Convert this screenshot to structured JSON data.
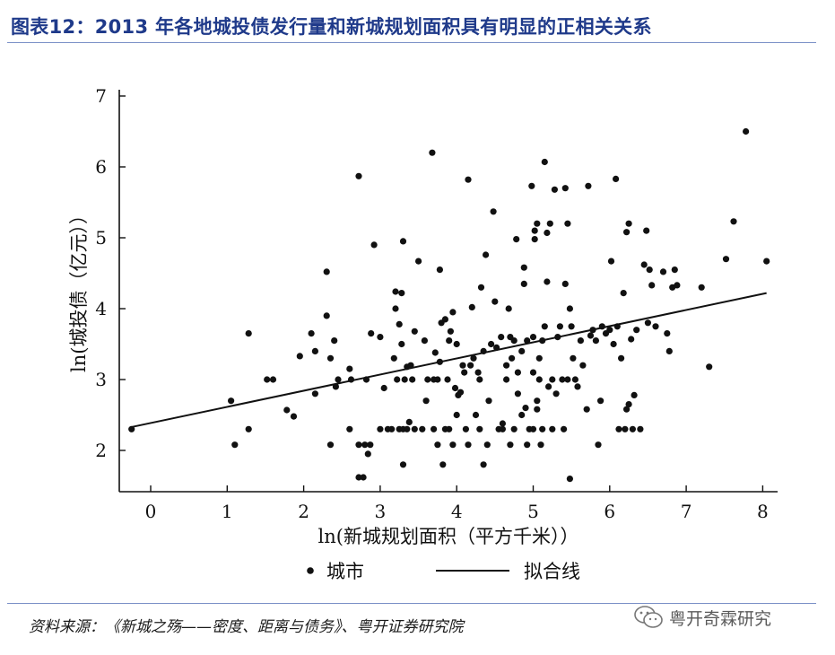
{
  "title": "图表12：2013 年各地城投债发行量和新城规划面积具有明显的正相关关系",
  "source": "资料来源：《新城之殇——密度、距离与债务》、粤开证券研究院",
  "watermark": {
    "text": "粤开奇霖研究",
    "icon": "wechat-icon"
  },
  "chart_data": {
    "type": "scatter",
    "xlabel": "ln(新城规划面积（平方千米））",
    "ylabel": "ln(城投债（亿元））",
    "xlim": [
      -0.4,
      8.2
    ],
    "ylim": [
      1.5,
      7.1
    ],
    "xticks": [
      0,
      1,
      2,
      3,
      4,
      5,
      6,
      7,
      8
    ],
    "yticks": [
      2,
      3,
      4,
      5,
      6,
      7
    ],
    "grid": false,
    "legend": {
      "placement": "bottom",
      "entries": [
        {
          "label": "城市",
          "marker": "dot"
        },
        {
          "label": "拟合线",
          "marker": "line"
        }
      ]
    },
    "series": [
      {
        "name": "城市",
        "points": [
          [
            -0.25,
            2.3
          ],
          [
            1.05,
            2.7
          ],
          [
            1.1,
            2.08
          ],
          [
            1.28,
            2.3
          ],
          [
            1.28,
            3.65
          ],
          [
            1.52,
            3.0
          ],
          [
            1.6,
            3.0
          ],
          [
            1.78,
            2.57
          ],
          [
            1.87,
            2.48
          ],
          [
            1.95,
            3.33
          ],
          [
            2.1,
            3.65
          ],
          [
            2.15,
            3.4
          ],
          [
            2.15,
            2.8
          ],
          [
            2.3,
            3.9
          ],
          [
            2.3,
            4.52
          ],
          [
            2.35,
            3.3
          ],
          [
            2.35,
            2.08
          ],
          [
            2.4,
            3.55
          ],
          [
            2.42,
            2.9
          ],
          [
            2.45,
            3.0
          ],
          [
            2.6,
            3.15
          ],
          [
            2.6,
            2.3
          ],
          [
            2.62,
            3.0
          ],
          [
            2.72,
            5.87
          ],
          [
            2.72,
            2.08
          ],
          [
            2.72,
            1.62
          ],
          [
            2.78,
            1.62
          ],
          [
            2.8,
            2.08
          ],
          [
            2.82,
            3.0
          ],
          [
            2.84,
            1.95
          ],
          [
            2.87,
            2.08
          ],
          [
            2.88,
            3.65
          ],
          [
            2.92,
            4.9
          ],
          [
            3.0,
            3.6
          ],
          [
            3.0,
            2.3
          ],
          [
            3.05,
            2.88
          ],
          [
            3.1,
            2.3
          ],
          [
            3.15,
            2.3
          ],
          [
            3.18,
            3.3
          ],
          [
            3.2,
            4.24
          ],
          [
            3.2,
            4.0
          ],
          [
            3.22,
            3.0
          ],
          [
            3.25,
            3.78
          ],
          [
            3.25,
            2.3
          ],
          [
            3.28,
            3.5
          ],
          [
            3.28,
            4.22
          ],
          [
            3.3,
            2.3
          ],
          [
            3.3,
            4.95
          ],
          [
            3.3,
            1.8
          ],
          [
            3.32,
            3.0
          ],
          [
            3.35,
            3.18
          ],
          [
            3.35,
            2.3
          ],
          [
            3.38,
            2.4
          ],
          [
            3.4,
            3.2
          ],
          [
            3.42,
            3.0
          ],
          [
            3.45,
            3.68
          ],
          [
            3.45,
            2.3
          ],
          [
            3.5,
            4.67
          ],
          [
            3.55,
            2.3
          ],
          [
            3.58,
            3.55
          ],
          [
            3.6,
            2.7
          ],
          [
            3.62,
            3.0
          ],
          [
            3.68,
            6.2
          ],
          [
            3.7,
            2.3
          ],
          [
            3.7,
            3.0
          ],
          [
            3.72,
            3.38
          ],
          [
            3.75,
            2.08
          ],
          [
            3.75,
            3.0
          ],
          [
            3.78,
            4.55
          ],
          [
            3.78,
            3.25
          ],
          [
            3.8,
            3.8
          ],
          [
            3.82,
            1.8
          ],
          [
            3.85,
            3.85
          ],
          [
            3.85,
            2.3
          ],
          [
            3.88,
            3.0
          ],
          [
            3.9,
            3.55
          ],
          [
            3.9,
            2.3
          ],
          [
            3.92,
            3.68
          ],
          [
            3.95,
            3.95
          ],
          [
            3.95,
            2.08
          ],
          [
            3.98,
            2.88
          ],
          [
            4.0,
            2.5
          ],
          [
            4.0,
            3.5
          ],
          [
            4.02,
            2.78
          ],
          [
            4.05,
            2.82
          ],
          [
            4.08,
            3.2
          ],
          [
            4.1,
            3.1
          ],
          [
            4.12,
            2.3
          ],
          [
            4.15,
            5.82
          ],
          [
            4.15,
            2.08
          ],
          [
            4.18,
            3.2
          ],
          [
            4.2,
            4.02
          ],
          [
            4.22,
            3.3
          ],
          [
            4.25,
            2.5
          ],
          [
            4.28,
            3.1
          ],
          [
            4.3,
            2.3
          ],
          [
            4.3,
            3.0
          ],
          [
            4.32,
            4.3
          ],
          [
            4.35,
            3.4
          ],
          [
            4.35,
            1.8
          ],
          [
            4.38,
            4.76
          ],
          [
            4.4,
            2.08
          ],
          [
            4.42,
            2.7
          ],
          [
            4.45,
            3.5
          ],
          [
            4.48,
            5.37
          ],
          [
            4.5,
            4.1
          ],
          [
            4.52,
            3.45
          ],
          [
            4.55,
            2.3
          ],
          [
            4.58,
            3.6
          ],
          [
            4.6,
            2.3
          ],
          [
            4.6,
            2.38
          ],
          [
            4.65,
            3.0
          ],
          [
            4.65,
            3.2
          ],
          [
            4.68,
            4.0
          ],
          [
            4.7,
            3.6
          ],
          [
            4.7,
            2.08
          ],
          [
            4.72,
            3.3
          ],
          [
            4.75,
            3.55
          ],
          [
            4.75,
            2.3
          ],
          [
            4.78,
            4.98
          ],
          [
            4.8,
            3.1
          ],
          [
            4.8,
            2.8
          ],
          [
            4.85,
            2.5
          ],
          [
            4.85,
            3.4
          ],
          [
            4.88,
            4.35
          ],
          [
            4.88,
            4.58
          ],
          [
            4.9,
            2.6
          ],
          [
            4.92,
            2.08
          ],
          [
            4.92,
            3.55
          ],
          [
            4.95,
            2.3
          ],
          [
            4.98,
            5.73
          ],
          [
            5.0,
            3.1
          ],
          [
            5.0,
            3.6
          ],
          [
            5.0,
            2.3
          ],
          [
            5.02,
            4.98
          ],
          [
            5.02,
            5.1
          ],
          [
            5.05,
            5.2
          ],
          [
            5.05,
            2.58
          ],
          [
            5.05,
            2.7
          ],
          [
            5.08,
            3.0
          ],
          [
            5.08,
            3.3
          ],
          [
            5.1,
            2.08
          ],
          [
            5.12,
            3.55
          ],
          [
            5.12,
            2.3
          ],
          [
            5.15,
            6.07
          ],
          [
            5.15,
            3.75
          ],
          [
            5.18,
            4.38
          ],
          [
            5.18,
            5.07
          ],
          [
            5.2,
            2.9
          ],
          [
            5.22,
            5.2
          ],
          [
            5.25,
            3.0
          ],
          [
            5.25,
            2.3
          ],
          [
            5.28,
            5.68
          ],
          [
            5.3,
            2.8
          ],
          [
            5.32,
            3.6
          ],
          [
            5.35,
            3.75
          ],
          [
            5.38,
            3.0
          ],
          [
            5.4,
            2.3
          ],
          [
            5.42,
            4.35
          ],
          [
            5.42,
            5.7
          ],
          [
            5.45,
            5.2
          ],
          [
            5.45,
            3.0
          ],
          [
            5.48,
            4.0
          ],
          [
            5.48,
            1.6
          ],
          [
            5.5,
            3.75
          ],
          [
            5.52,
            3.3
          ],
          [
            5.55,
            3.0
          ],
          [
            5.58,
            2.9
          ],
          [
            5.62,
            3.55
          ],
          [
            5.65,
            3.2
          ],
          [
            5.7,
            2.58
          ],
          [
            5.72,
            5.73
          ],
          [
            5.75,
            3.62
          ],
          [
            5.78,
            3.7
          ],
          [
            5.82,
            3.55
          ],
          [
            5.85,
            2.08
          ],
          [
            5.88,
            2.7
          ],
          [
            5.9,
            3.75
          ],
          [
            5.95,
            3.65
          ],
          [
            6.0,
            3.7
          ],
          [
            6.02,
            4.67
          ],
          [
            6.05,
            3.5
          ],
          [
            6.08,
            5.83
          ],
          [
            6.1,
            3.75
          ],
          [
            6.12,
            2.3
          ],
          [
            6.15,
            3.3
          ],
          [
            6.18,
            4.22
          ],
          [
            6.2,
            2.3
          ],
          [
            6.22,
            2.58
          ],
          [
            6.22,
            5.08
          ],
          [
            6.25,
            5.2
          ],
          [
            6.25,
            2.65
          ],
          [
            6.28,
            3.57
          ],
          [
            6.3,
            2.3
          ],
          [
            6.32,
            2.78
          ],
          [
            6.35,
            3.7
          ],
          [
            6.4,
            2.3
          ],
          [
            6.45,
            4.62
          ],
          [
            6.48,
            5.1
          ],
          [
            6.5,
            3.8
          ],
          [
            6.52,
            4.55
          ],
          [
            6.55,
            4.33
          ],
          [
            6.6,
            3.75
          ],
          [
            6.7,
            4.52
          ],
          [
            6.75,
            3.65
          ],
          [
            6.78,
            3.4
          ],
          [
            6.82,
            4.3
          ],
          [
            6.85,
            4.55
          ],
          [
            6.88,
            4.33
          ],
          [
            7.2,
            4.3
          ],
          [
            7.3,
            3.18
          ],
          [
            7.52,
            4.7
          ],
          [
            7.62,
            5.23
          ],
          [
            7.78,
            6.5
          ],
          [
            8.05,
            4.67
          ]
        ]
      }
    ],
    "fit_line": {
      "name": "拟合线",
      "from": [
        -0.25,
        2.33
      ],
      "to": [
        8.05,
        4.22
      ]
    }
  }
}
